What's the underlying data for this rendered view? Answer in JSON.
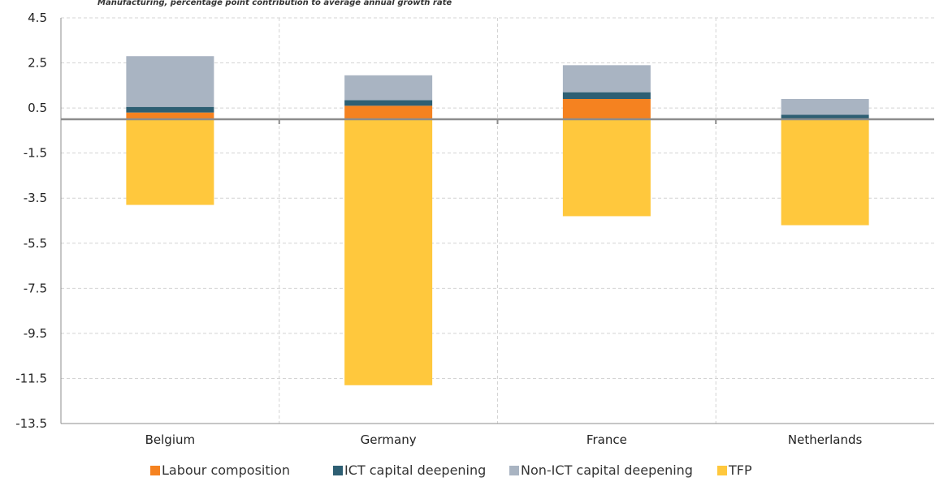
{
  "chart_data": {
    "type": "bar",
    "stacked": true,
    "title": "",
    "subtitle": "Manufacturing, percentage point contribution to average annual growth rate",
    "xlabel": "",
    "ylabel": "",
    "ylim": [
      -13.5,
      4.5
    ],
    "yticks": [
      4.5,
      2.5,
      0.5,
      -1.5,
      -3.5,
      -5.5,
      -7.5,
      -9.5,
      -11.5,
      -13.5
    ],
    "ytick_labels": [
      "4.5",
      "2.5",
      "0.5",
      "-1.5",
      "-3.5",
      "-5.5",
      "-7.5",
      "-9.5",
      "-11.5",
      "-13.5"
    ],
    "categories": [
      "Belgium",
      "Germany",
      "France",
      "Netherlands"
    ],
    "series": [
      {
        "name": "Labour composition",
        "color": "#F58220",
        "values": [
          0.3,
          0.6,
          0.9,
          0.0
        ]
      },
      {
        "name": "ICT capital deepening",
        "color": "#2E5F73",
        "values": [
          0.25,
          0.25,
          0.3,
          0.2
        ]
      },
      {
        "name": "Non-ICT capital deepening",
        "color": "#A9B4C2",
        "values": [
          2.25,
          1.1,
          1.2,
          0.7
        ]
      },
      {
        "name": "TFP",
        "color": "#FFC83D",
        "values": [
          -3.8,
          -11.8,
          -4.3,
          -4.7
        ]
      }
    ],
    "grid": true,
    "legend_position": "bottom"
  }
}
